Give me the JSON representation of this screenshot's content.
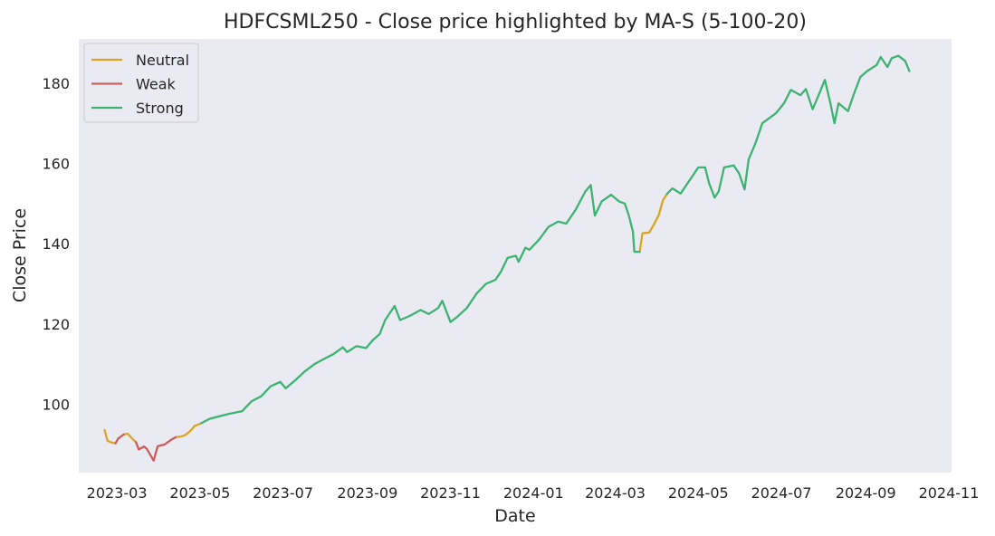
{
  "chart_data": {
    "type": "line",
    "title": "HDFCSML250 - Close price highlighted by MA-S (5-100-20)",
    "xlabel": "Date",
    "ylabel": "Close Price",
    "x_range": [
      "2023-02-01",
      "2024-11-03"
    ],
    "ylim": [
      83,
      191
    ],
    "x_ticks": [
      "2023-03",
      "2023-05",
      "2023-07",
      "2023-09",
      "2023-11",
      "2024-01",
      "2024-03",
      "2024-05",
      "2024-07",
      "2024-09",
      "2024-11"
    ],
    "x_tick_dates": [
      "2023-03-01",
      "2023-05-01",
      "2023-07-01",
      "2023-09-01",
      "2023-11-01",
      "2024-01-01",
      "2024-03-01",
      "2024-05-01",
      "2024-07-01",
      "2024-09-01",
      "2024-11-01"
    ],
    "y_ticks": [
      100,
      120,
      140,
      160,
      180
    ],
    "grid": false,
    "background": "#eaeaf2",
    "legend": {
      "position": "top-left",
      "entries": [
        {
          "name": "Neutral",
          "color": "#daa520"
        },
        {
          "name": "Weak",
          "color": "#cd5c5c"
        },
        {
          "name": "Strong",
          "color": "#3cb371"
        }
      ]
    },
    "series": [
      {
        "name": "Neutral",
        "color": "#daa520",
        "segments": [
          [
            [
              "2023-02-20",
              93.6
            ],
            [
              "2023-02-22",
              91.0
            ],
            [
              "2023-02-24",
              90.6
            ],
            [
              "2023-02-28",
              90.3
            ]
          ],
          [
            [
              "2023-03-06",
              92.5
            ],
            [
              "2023-03-09",
              92.7
            ],
            [
              "2023-03-13",
              91.2
            ],
            [
              "2023-03-15",
              90.6
            ]
          ],
          [
            [
              "2023-04-13",
              91.8
            ],
            [
              "2023-04-17",
              92.0
            ],
            [
              "2023-04-20",
              92.3
            ],
            [
              "2023-04-24",
              93.4
            ],
            [
              "2023-04-27",
              94.6
            ],
            [
              "2023-05-02",
              95.3
            ]
          ],
          [
            [
              "2024-03-19",
              138.0
            ],
            [
              "2024-03-21",
              142.6
            ],
            [
              "2024-03-26",
              142.8
            ],
            [
              "2024-03-29",
              144.5
            ],
            [
              "2024-04-02",
              147.2
            ],
            [
              "2024-04-05",
              150.8
            ],
            [
              "2024-04-08",
              152.4
            ]
          ]
        ]
      },
      {
        "name": "Weak",
        "color": "#cd5c5c",
        "segments": [
          [
            [
              "2023-02-28",
              90.3
            ],
            [
              "2023-03-02",
              91.5
            ],
            [
              "2023-03-06",
              92.5
            ]
          ],
          [
            [
              "2023-03-15",
              90.6
            ],
            [
              "2023-03-17",
              88.8
            ],
            [
              "2023-03-21",
              89.5
            ],
            [
              "2023-03-23",
              88.9
            ],
            [
              "2023-03-28",
              86.0
            ],
            [
              "2023-03-31",
              89.6
            ],
            [
              "2023-04-05",
              90.0
            ],
            [
              "2023-04-10",
              91.2
            ],
            [
              "2023-04-13",
              91.8
            ]
          ]
        ]
      },
      {
        "name": "Strong",
        "color": "#3cb371",
        "segments": [
          [
            [
              "2023-05-02",
              95.3
            ],
            [
              "2023-05-08",
              96.4
            ],
            [
              "2023-05-15",
              97.0
            ],
            [
              "2023-05-22",
              97.6
            ],
            [
              "2023-06-01",
              98.3
            ],
            [
              "2023-06-08",
              100.8
            ],
            [
              "2023-06-15",
              102.0
            ],
            [
              "2023-06-22",
              104.5
            ],
            [
              "2023-06-29",
              105.6
            ],
            [
              "2023-07-03",
              104.0
            ],
            [
              "2023-07-10",
              106.0
            ],
            [
              "2023-07-17",
              108.2
            ],
            [
              "2023-07-24",
              110.0
            ],
            [
              "2023-07-31",
              111.3
            ],
            [
              "2023-08-07",
              112.5
            ],
            [
              "2023-08-14",
              114.2
            ],
            [
              "2023-08-17",
              113.0
            ],
            [
              "2023-08-24",
              114.5
            ],
            [
              "2023-08-31",
              114.0
            ],
            [
              "2023-09-05",
              116.0
            ],
            [
              "2023-09-10",
              117.5
            ],
            [
              "2023-09-14",
              121.0
            ],
            [
              "2023-09-21",
              124.5
            ],
            [
              "2023-09-25",
              121.0
            ],
            [
              "2023-10-02",
              122.0
            ],
            [
              "2023-10-10",
              123.5
            ],
            [
              "2023-10-16",
              122.5
            ],
            [
              "2023-10-23",
              124.0
            ],
            [
              "2023-10-26",
              125.8
            ],
            [
              "2023-11-01",
              120.5
            ],
            [
              "2023-11-06",
              121.8
            ],
            [
              "2023-11-13",
              124.0
            ],
            [
              "2023-11-20",
              127.5
            ],
            [
              "2023-11-27",
              130.0
            ],
            [
              "2023-12-04",
              131.0
            ],
            [
              "2023-12-08",
              133.0
            ],
            [
              "2023-12-13",
              136.5
            ],
            [
              "2023-12-19",
              137.0
            ],
            [
              "2023-12-21",
              135.5
            ],
            [
              "2023-12-26",
              139.0
            ],
            [
              "2023-12-29",
              138.5
            ],
            [
              "2024-01-05",
              141.0
            ],
            [
              "2024-01-12",
              144.2
            ],
            [
              "2024-01-19",
              145.5
            ],
            [
              "2024-01-25",
              145.0
            ],
            [
              "2024-02-01",
              148.5
            ],
            [
              "2024-02-08",
              153.0
            ],
            [
              "2024-02-12",
              154.6
            ],
            [
              "2024-02-15",
              147.0
            ],
            [
              "2024-02-20",
              150.5
            ],
            [
              "2024-02-27",
              152.2
            ],
            [
              "2024-03-04",
              150.5
            ],
            [
              "2024-03-08",
              150.0
            ],
            [
              "2024-03-11",
              147.0
            ],
            [
              "2024-03-14",
              143.0
            ],
            [
              "2024-03-15",
              138.0
            ],
            [
              "2024-03-19",
              138.0
            ]
          ],
          [
            [
              "2024-04-08",
              152.4
            ],
            [
              "2024-04-12",
              153.8
            ],
            [
              "2024-04-18",
              152.5
            ],
            [
              "2024-04-25",
              156.0
            ],
            [
              "2024-05-01",
              159.0
            ],
            [
              "2024-05-06",
              159.0
            ],
            [
              "2024-05-09",
              155.0
            ],
            [
              "2024-05-13",
              151.5
            ],
            [
              "2024-05-16",
              153.0
            ],
            [
              "2024-05-20",
              159.0
            ],
            [
              "2024-05-27",
              159.5
            ],
            [
              "2024-05-31",
              157.5
            ],
            [
              "2024-06-04",
              153.5
            ],
            [
              "2024-06-07",
              161.0
            ],
            [
              "2024-06-12",
              165.0
            ],
            [
              "2024-06-17",
              170.0
            ],
            [
              "2024-06-21",
              171.0
            ],
            [
              "2024-06-27",
              172.5
            ],
            [
              "2024-07-03",
              175.0
            ],
            [
              "2024-07-08",
              178.3
            ],
            [
              "2024-07-15",
              177.0
            ],
            [
              "2024-07-19",
              178.5
            ],
            [
              "2024-07-24",
              173.5
            ],
            [
              "2024-07-29",
              177.5
            ],
            [
              "2024-08-02",
              180.8
            ],
            [
              "2024-08-06",
              175.0
            ],
            [
              "2024-08-09",
              170.0
            ],
            [
              "2024-08-12",
              175.0
            ],
            [
              "2024-08-19",
              173.0
            ],
            [
              "2024-08-23",
              177.0
            ],
            [
              "2024-08-28",
              181.5
            ],
            [
              "2024-09-02",
              183.0
            ],
            [
              "2024-09-09",
              184.5
            ],
            [
              "2024-09-12",
              186.5
            ],
            [
              "2024-09-17",
              184.0
            ],
            [
              "2024-09-20",
              186.2
            ],
            [
              "2024-09-25",
              186.8
            ],
            [
              "2024-09-30",
              185.5
            ],
            [
              "2024-10-03",
              183.0
            ]
          ]
        ]
      }
    ]
  }
}
